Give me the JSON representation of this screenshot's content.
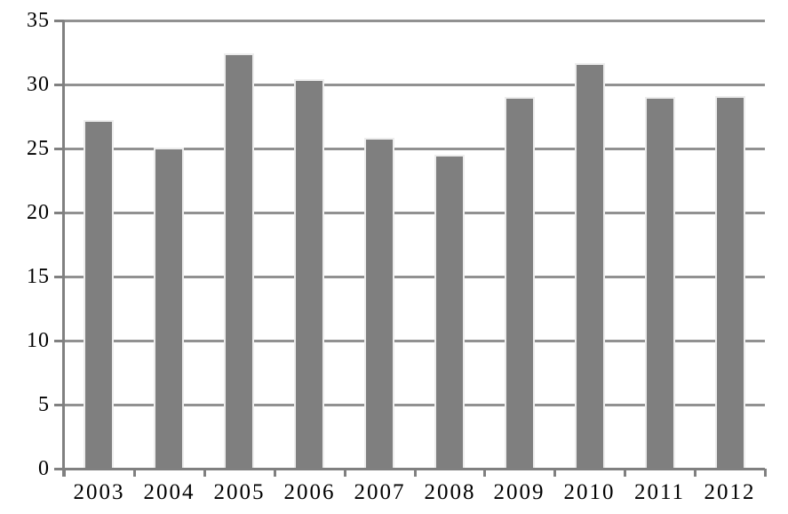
{
  "chart_data": {
    "type": "bar",
    "title": "",
    "xlabel": "",
    "ylabel": "",
    "categories": [
      "2003",
      "2004",
      "2005",
      "2006",
      "2007",
      "2008",
      "2009",
      "2010",
      "2011",
      "2012"
    ],
    "values": [
      27.2,
      25.1,
      32.4,
      30.4,
      25.8,
      24.5,
      29.0,
      31.7,
      29.0,
      29.1
    ],
    "ylim": [
      0,
      35
    ],
    "ytick_step": 5,
    "y_tick_labels": [
      "0",
      "5",
      "10",
      "15",
      "20",
      "25",
      "30",
      "35"
    ],
    "grid": true,
    "legend": null,
    "colors": {
      "bar_fill": "#7f7f7f",
      "bar_edge": "#ededed",
      "gridline": "#919191",
      "axis": "#808080",
      "tick": "#808080",
      "text": "#000000",
      "background": "#ffffff"
    }
  }
}
